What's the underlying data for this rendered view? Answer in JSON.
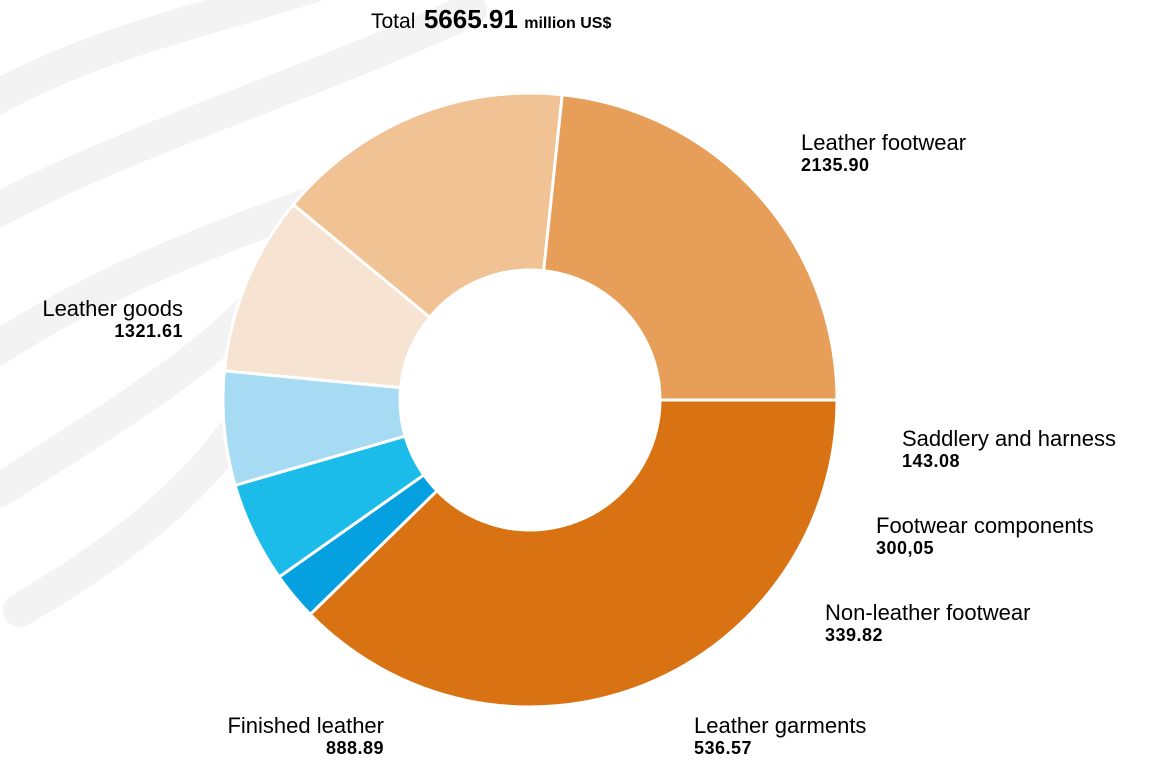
{
  "header": {
    "total_word": "Total",
    "total_value": "5665.91",
    "total_unit": "million US$"
  },
  "chart_data": {
    "type": "pie",
    "title": "Total 5665.91 million US$",
    "unit": "million US$",
    "donut": true,
    "slices": [
      {
        "label": "Leather footwear",
        "value": 2135.9,
        "value_text": "2135.90",
        "color": "#d97212"
      },
      {
        "label": "Saddlery and harness",
        "value": 143.08,
        "value_text": "143.08",
        "color": "#05a0e0"
      },
      {
        "label": "Footwear components",
        "value": 300.05,
        "value_text": "300,05",
        "color": "#1cbcea"
      },
      {
        "label": "Non-leather footwear",
        "value": 339.82,
        "value_text": "339.82",
        "color": "#a6dbf3"
      },
      {
        "label": "Leather garments",
        "value": 536.57,
        "value_text": "536.57",
        "color": "#f7e3d2"
      },
      {
        "label": "Finished leather",
        "value": 888.89,
        "value_text": "888.89",
        "color": "#f0c294"
      },
      {
        "label": "Leather goods",
        "value": 1321.61,
        "value_text": "1321.61",
        "color": "#e69e58"
      }
    ]
  }
}
